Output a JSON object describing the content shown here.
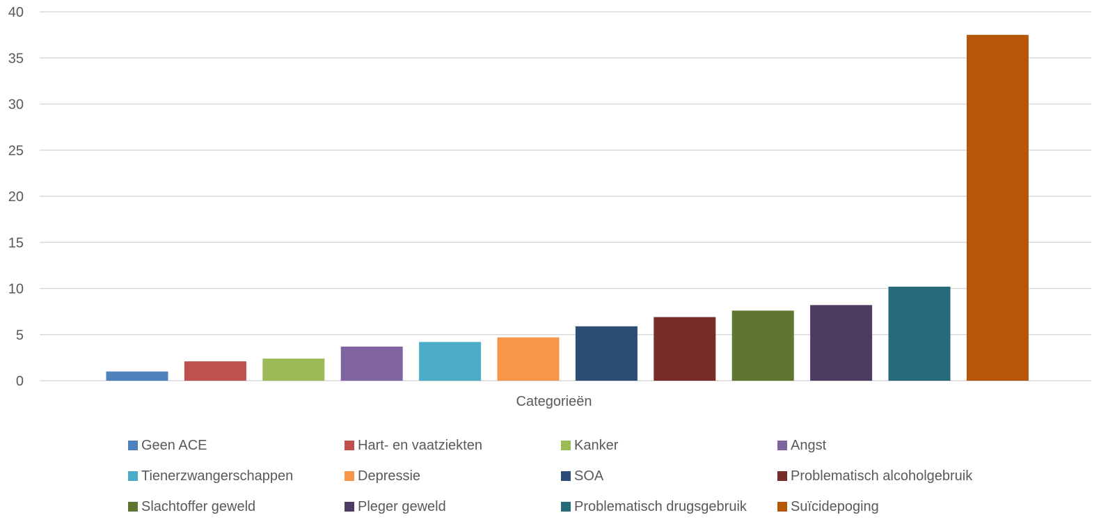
{
  "chart_data": {
    "type": "bar",
    "xlabel": "Categorieën",
    "ylabel": "",
    "ylim": [
      0,
      40
    ],
    "yticks": [
      0,
      5,
      10,
      15,
      20,
      25,
      30,
      35,
      40
    ],
    "grid": true,
    "legend_position": "bottom",
    "series": [
      {
        "name": "Geen ACE",
        "value": 1,
        "color": "#4F81BD"
      },
      {
        "name": "Hart- en vaatziekten",
        "value": 2.1,
        "color": "#C0504D"
      },
      {
        "name": "Kanker",
        "value": 2.4,
        "color": "#9BBB59"
      },
      {
        "name": "Angst",
        "value": 3.7,
        "color": "#8064A2"
      },
      {
        "name": "Tienerzwangerschappen",
        "value": 4.2,
        "color": "#4BACC6"
      },
      {
        "name": "Depressie",
        "value": 4.7,
        "color": "#F79646"
      },
      {
        "name": "SOA",
        "value": 5.9,
        "color": "#2C4D75"
      },
      {
        "name": "Problematisch alcoholgebruik",
        "value": 6.9,
        "color": "#772C2A"
      },
      {
        "name": "Slachtoffer geweld",
        "value": 7.6,
        "color": "#5F7530"
      },
      {
        "name": "Pleger geweld",
        "value": 8.2,
        "color": "#4D3B62"
      },
      {
        "name": "Problematisch drugsgebruik",
        "value": 10.2,
        "color": "#276A7C"
      },
      {
        "name": "Suïcidepoging",
        "value": 37.5,
        "color": "#B65708"
      }
    ]
  }
}
